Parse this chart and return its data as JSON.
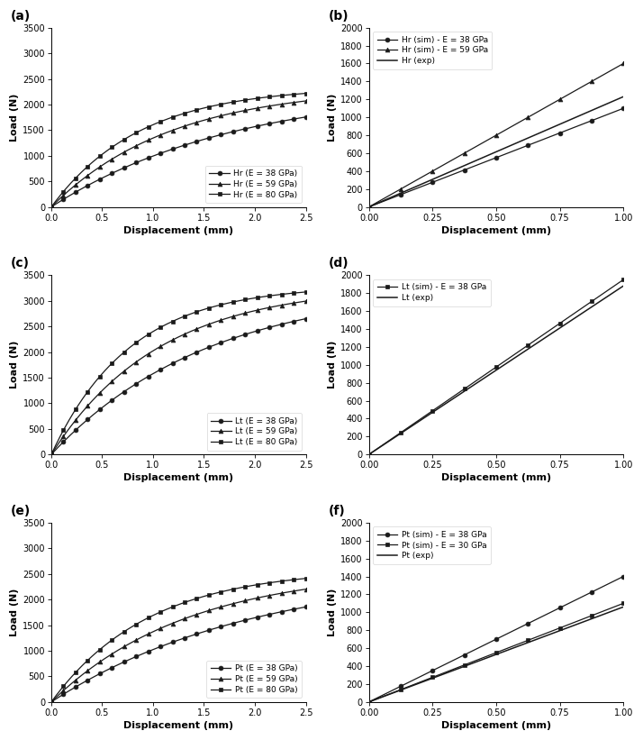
{
  "panels": [
    {
      "label": "a",
      "type": "sim",
      "xlim": [
        0,
        2.5
      ],
      "ylim": [
        0,
        3500
      ],
      "xticks": [
        0,
        0.5,
        1.0,
        1.5,
        2.0,
        2.5
      ],
      "yticks": [
        0,
        500,
        1000,
        1500,
        2000,
        2500,
        3000,
        3500
      ],
      "xlabel": "Displacement (mm)",
      "ylabel": "Load (N)",
      "legend_loc": "lower right",
      "series": [
        {
          "label": "Hr (E = 38 GPa)",
          "marker": "o",
          "plateau": 2350,
          "k": 0.55
        },
        {
          "label": "Hr (E = 59 GPa)",
          "marker": "^",
          "plateau": 2350,
          "k": 0.85
        },
        {
          "label": "Hr (E = 80 GPa)",
          "marker": "s",
          "plateau": 2350,
          "k": 1.15
        }
      ]
    },
    {
      "label": "b",
      "type": "exp",
      "xlim": [
        0,
        1.0
      ],
      "ylim": [
        0,
        2000
      ],
      "xticks": [
        0,
        0.25,
        0.5,
        0.75,
        1.0
      ],
      "yticks": [
        0,
        200,
        400,
        600,
        800,
        1000,
        1200,
        1400,
        1600,
        1800,
        2000
      ],
      "xlabel": "Displacement (mm)",
      "ylabel": "Load (N)",
      "legend_loc": "upper left",
      "series": [
        {
          "label": "Hr (sim) - E = 38 GPa",
          "marker": "o",
          "slope": 1100,
          "is_exp": false
        },
        {
          "label": "Hr (sim) - E = 59 GPa",
          "marker": "^",
          "slope": 1600,
          "is_exp": false
        },
        {
          "label": "Hr (exp)",
          "marker": null,
          "slope": 1230,
          "is_exp": true
        }
      ]
    },
    {
      "label": "c",
      "type": "sim",
      "xlim": [
        0,
        2.5
      ],
      "ylim": [
        0,
        3500
      ],
      "xticks": [
        0,
        0.5,
        1.0,
        1.5,
        2.0,
        2.5
      ],
      "yticks": [
        0,
        500,
        1000,
        1500,
        2000,
        2500,
        3000,
        3500
      ],
      "xlabel": "Displacement (mm)",
      "ylabel": "Load (N)",
      "legend_loc": "lower right",
      "series": [
        {
          "label": "Lt (E = 38 GPa)",
          "marker": "o",
          "plateau": 3300,
          "k": 0.65
        },
        {
          "label": "Lt (E = 59 GPa)",
          "marker": "^",
          "plateau": 3300,
          "k": 0.95
        },
        {
          "label": "Lt (E = 80 GPa)",
          "marker": "s",
          "plateau": 3300,
          "k": 1.3
        }
      ]
    },
    {
      "label": "d",
      "type": "exp",
      "xlim": [
        0,
        1.0
      ],
      "ylim": [
        0,
        2000
      ],
      "xticks": [
        0,
        0.25,
        0.5,
        0.75,
        1.0
      ],
      "yticks": [
        0,
        200,
        400,
        600,
        800,
        1000,
        1200,
        1400,
        1600,
        1800,
        2000
      ],
      "xlabel": "Displacement (mm)",
      "ylabel": "Load (N)",
      "legend_loc": "upper left",
      "series": [
        {
          "label": "Lt (sim) - E = 38 GPa",
          "marker": "s",
          "slope": 1950,
          "is_exp": false
        },
        {
          "label": "Lt (exp)",
          "marker": null,
          "slope": 1880,
          "is_exp": true
        }
      ]
    },
    {
      "label": "e",
      "type": "sim",
      "xlim": [
        0,
        2.5
      ],
      "ylim": [
        0,
        3500
      ],
      "xticks": [
        0,
        0.5,
        1.0,
        1.5,
        2.0,
        2.5
      ],
      "yticks": [
        0,
        500,
        1000,
        1500,
        2000,
        2500,
        3000,
        3500
      ],
      "xlabel": "Displacement (mm)",
      "ylabel": "Load (N)",
      "legend_loc": "lower right",
      "series": [
        {
          "label": "Pt (E = 38 GPa)",
          "marker": "o",
          "plateau": 2600,
          "k": 0.5
        },
        {
          "label": "Pt (E = 59 GPa)",
          "marker": "^",
          "plateau": 2600,
          "k": 0.75
        },
        {
          "label": "Pt (E = 80 GPa)",
          "marker": "s",
          "plateau": 2600,
          "k": 1.05
        }
      ]
    },
    {
      "label": "f",
      "type": "exp",
      "xlim": [
        0,
        1.0
      ],
      "ylim": [
        0,
        2000
      ],
      "xticks": [
        0,
        0.25,
        0.5,
        0.75,
        1.0
      ],
      "yticks": [
        0,
        200,
        400,
        600,
        800,
        1000,
        1200,
        1400,
        1600,
        1800,
        2000
      ],
      "xlabel": "Displacement (mm)",
      "ylabel": "Load (N)",
      "legend_loc": "upper left",
      "series": [
        {
          "label": "Pt (sim) - E = 38 GPa",
          "marker": "o",
          "slope": 1400,
          "is_exp": false
        },
        {
          "label": "Pt (sim) - E = 30 GPa",
          "marker": "s",
          "slope": 1100,
          "is_exp": false
        },
        {
          "label": "Pt (exp)",
          "marker": null,
          "slope": 1060,
          "is_exp": true
        }
      ]
    }
  ],
  "color": "#1a1a1a",
  "markersize": 3.5,
  "linewidth": 0.9,
  "fontsize_label": 8,
  "fontsize_tick": 7,
  "fontsize_legend": 6.5,
  "fontsize_panel_label": 10
}
